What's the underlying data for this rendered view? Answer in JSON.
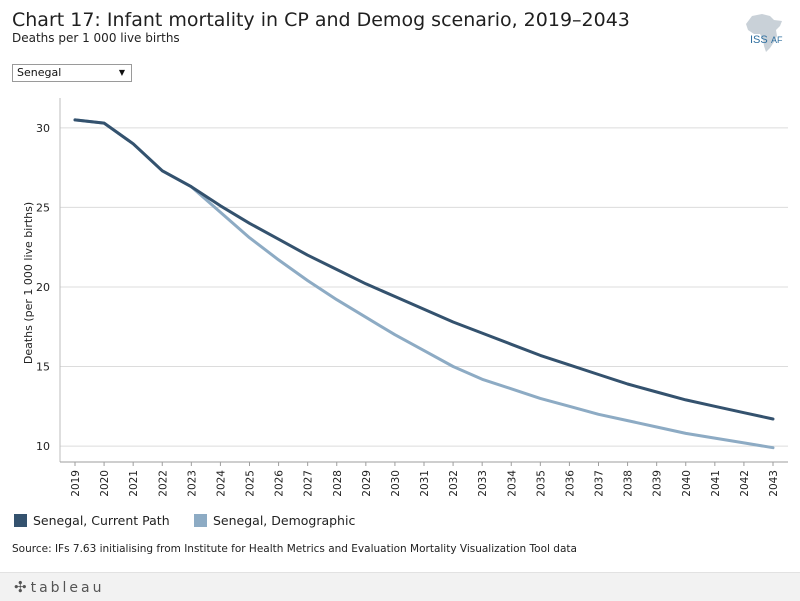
{
  "header": {
    "title": "Chart 17: Infant mortality in CP and Demog scenario, 2019–2043",
    "subtitle": "Deaths per 1 000 live births",
    "logo_text_left": "ISS",
    "logo_text_right": "AF"
  },
  "filter": {
    "selected": "Senegal",
    "arrow_icon": "▼"
  },
  "chart_data": {
    "type": "line",
    "title": "Chart 17: Infant mortality in CP and Demog scenario, 2019–2043",
    "ylabel": "Deaths (per 1 000 live births)",
    "xlabel": "",
    "ylim": [
      9,
      31.5
    ],
    "yticks": [
      10,
      15,
      20,
      25,
      30
    ],
    "x": [
      "2019",
      "2020",
      "2021",
      "2022",
      "2023",
      "2024",
      "2025",
      "2026",
      "2027",
      "2028",
      "2029",
      "2030",
      "2031",
      "2032",
      "2033",
      "2034",
      "2035",
      "2036",
      "2037",
      "2038",
      "2039",
      "2040",
      "2041",
      "2042",
      "2043"
    ],
    "grid": true,
    "series": [
      {
        "name": "Senegal, Current Path",
        "color": "#34526e",
        "values": [
          30.5,
          30.3,
          29.0,
          27.3,
          26.3,
          25.1,
          24.0,
          23.0,
          22.0,
          21.1,
          20.2,
          19.4,
          18.6,
          17.8,
          17.1,
          16.4,
          15.7,
          15.1,
          14.5,
          13.9,
          13.4,
          12.9,
          12.5,
          12.1,
          11.7
        ]
      },
      {
        "name": "Senegal, Demographic",
        "color": "#8dabc4",
        "values": [
          30.5,
          30.3,
          29.0,
          27.3,
          26.3,
          24.7,
          23.1,
          21.7,
          20.4,
          19.2,
          18.1,
          17.0,
          16.0,
          15.0,
          14.2,
          13.6,
          13.0,
          12.5,
          12.0,
          11.6,
          11.2,
          10.8,
          10.5,
          10.2,
          9.9
        ]
      }
    ]
  },
  "legend": {
    "items": [
      {
        "label": "Senegal, Current Path",
        "color": "#34526e"
      },
      {
        "label": "Senegal, Demographic",
        "color": "#8dabc4"
      }
    ]
  },
  "source": "Source: IFs 7.63 initialising from Institute for Health Metrics and Evaluation Mortality Visualization Tool data",
  "footer": {
    "brand": "tableau",
    "brand_icon": "✣"
  }
}
